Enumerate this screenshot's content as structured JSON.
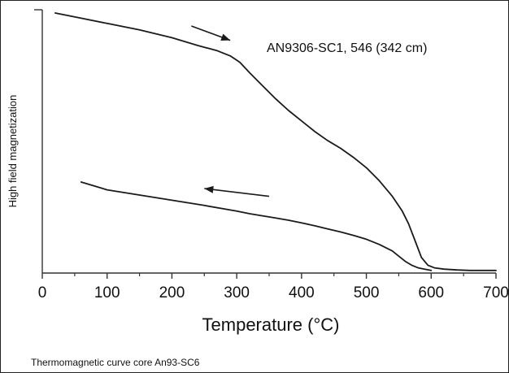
{
  "chart_data": {
    "type": "line",
    "annotation": "AN9306-SC1, 546 (342 cm)",
    "xlabel": "Temperature (°C)",
    "ylabel": "High field magnetization",
    "xlim": [
      0,
      700
    ],
    "ylim": [
      0,
      1
    ],
    "xticks": [
      0,
      100,
      200,
      300,
      400,
      500,
      600,
      700
    ],
    "grid": false,
    "legend": "none",
    "series": [
      {
        "direction": "heating",
        "x": [
          20,
          60,
          100,
          150,
          200,
          240,
          270,
          290,
          305,
          320,
          340,
          360,
          380,
          400,
          420,
          440,
          460,
          480,
          500,
          520,
          540,
          555,
          565,
          575,
          585,
          595,
          605,
          620,
          640,
          660,
          680,
          700
        ],
        "y": [
          1.0,
          0.98,
          0.96,
          0.935,
          0.905,
          0.875,
          0.855,
          0.835,
          0.81,
          0.77,
          0.72,
          0.67,
          0.625,
          0.585,
          0.545,
          0.51,
          0.48,
          0.445,
          0.405,
          0.355,
          0.295,
          0.24,
          0.19,
          0.125,
          0.06,
          0.03,
          0.02,
          0.015,
          0.012,
          0.01,
          0.01,
          0.01
        ]
      },
      {
        "direction": "cooling",
        "x": [
          600,
          590,
          580,
          570,
          560,
          550,
          540,
          520,
          500,
          480,
          460,
          440,
          420,
          400,
          380,
          360,
          340,
          320,
          300,
          250,
          200,
          150,
          100,
          60
        ],
        "y": [
          0.01,
          0.015,
          0.02,
          0.03,
          0.045,
          0.065,
          0.085,
          0.11,
          0.13,
          0.145,
          0.158,
          0.17,
          0.182,
          0.193,
          0.203,
          0.212,
          0.22,
          0.228,
          0.238,
          0.26,
          0.28,
          0.3,
          0.32,
          0.35
        ]
      }
    ],
    "arrows": [
      {
        "direction": "heating",
        "from": [
          230,
          0.95
        ],
        "to": [
          290,
          0.895
        ]
      },
      {
        "direction": "cooling",
        "from": [
          350,
          0.295
        ],
        "to": [
          250,
          0.325
        ]
      }
    ]
  },
  "caption": "Thermomagnetic curve core An93-SC6",
  "colors": {
    "line": "#1a1a1a",
    "axis": "#333333",
    "border": "#222222",
    "background": "#ffffff"
  }
}
